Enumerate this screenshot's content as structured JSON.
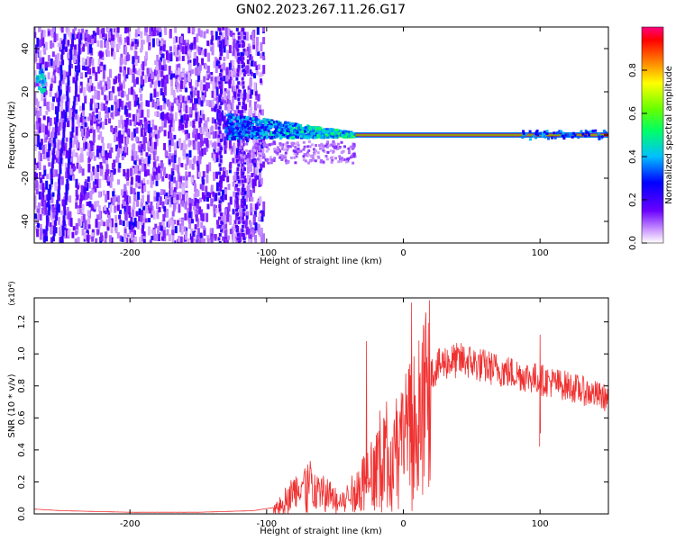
{
  "title": "GN02.2023.267.11.26.G17",
  "chart_data": [
    {
      "type": "heatmap",
      "xlabel": "Height of straight line (km)",
      "ylabel": "Frequency (Hz)",
      "xlim": [
        -270,
        150
      ],
      "ylim": [
        -50,
        50
      ],
      "xticks": [
        -200,
        -100,
        0,
        100
      ],
      "yticks": [
        -40,
        -20,
        0,
        20,
        40
      ],
      "colorbar": {
        "label": "Normalized spectral amplitude",
        "range": [
          0,
          1
        ],
        "ticks": [
          "0.0",
          "0.2",
          "0.4",
          "0.6",
          "0.8"
        ],
        "colormap": "rainbow (white-violet-blue-cyan-green-yellow-orange-red)"
      },
      "features": {
        "constant_tone_frequency_hz": 0,
        "tone_x_range_km": [
          -35,
          150
        ],
        "scattered_noise_x_range_km": [
          -270,
          -110
        ],
        "converging_band_x_range_km": [
          -130,
          -35
        ]
      }
    },
    {
      "type": "line",
      "xlabel": "Height of straight line (km)",
      "ylabel": "SNR (10 * v/v)",
      "y_multiplier": "(x10⁴)",
      "xlim": [
        -270,
        150
      ],
      "ylim": [
        0,
        1.35
      ],
      "xticks": [
        -200,
        -100,
        0,
        100
      ],
      "yticks": [
        "0.0",
        "0.2",
        "0.4",
        "0.6",
        "0.8",
        "1.0",
        "1.2"
      ],
      "grid": false,
      "series": [
        {
          "color": "#f03030",
          "envelope_points": [
            {
              "x": -270,
              "y": 0.03
            },
            {
              "x": -250,
              "y": 0.02
            },
            {
              "x": -200,
              "y": 0.01
            },
            {
              "x": -150,
              "y": 0.01
            },
            {
              "x": -110,
              "y": 0.02
            },
            {
              "x": -95,
              "y": 0.04
            },
            {
              "x": -85,
              "y": 0.12
            },
            {
              "x": -70,
              "y": 0.22
            },
            {
              "x": -55,
              "y": 0.14
            },
            {
              "x": -45,
              "y": 0.08
            },
            {
              "x": -35,
              "y": 0.18
            },
            {
              "x": -25,
              "y": 0.3
            },
            {
              "x": -15,
              "y": 0.45
            },
            {
              "x": 0,
              "y": 0.55
            },
            {
              "x": 10,
              "y": 0.7
            },
            {
              "x": 20,
              "y": 0.88
            },
            {
              "x": 30,
              "y": 0.95
            },
            {
              "x": 45,
              "y": 0.96
            },
            {
              "x": 60,
              "y": 0.92
            },
            {
              "x": 80,
              "y": 0.88
            },
            {
              "x": 100,
              "y": 0.84
            },
            {
              "x": 120,
              "y": 0.8
            },
            {
              "x": 135,
              "y": 0.76
            },
            {
              "x": 150,
              "y": 0.72
            }
          ],
          "peaks": [
            {
              "x": -27,
              "y": 1.08
            },
            {
              "x": 6,
              "y": 1.32
            },
            {
              "x": 100,
              "y": 1.12
            }
          ]
        }
      ]
    }
  ]
}
